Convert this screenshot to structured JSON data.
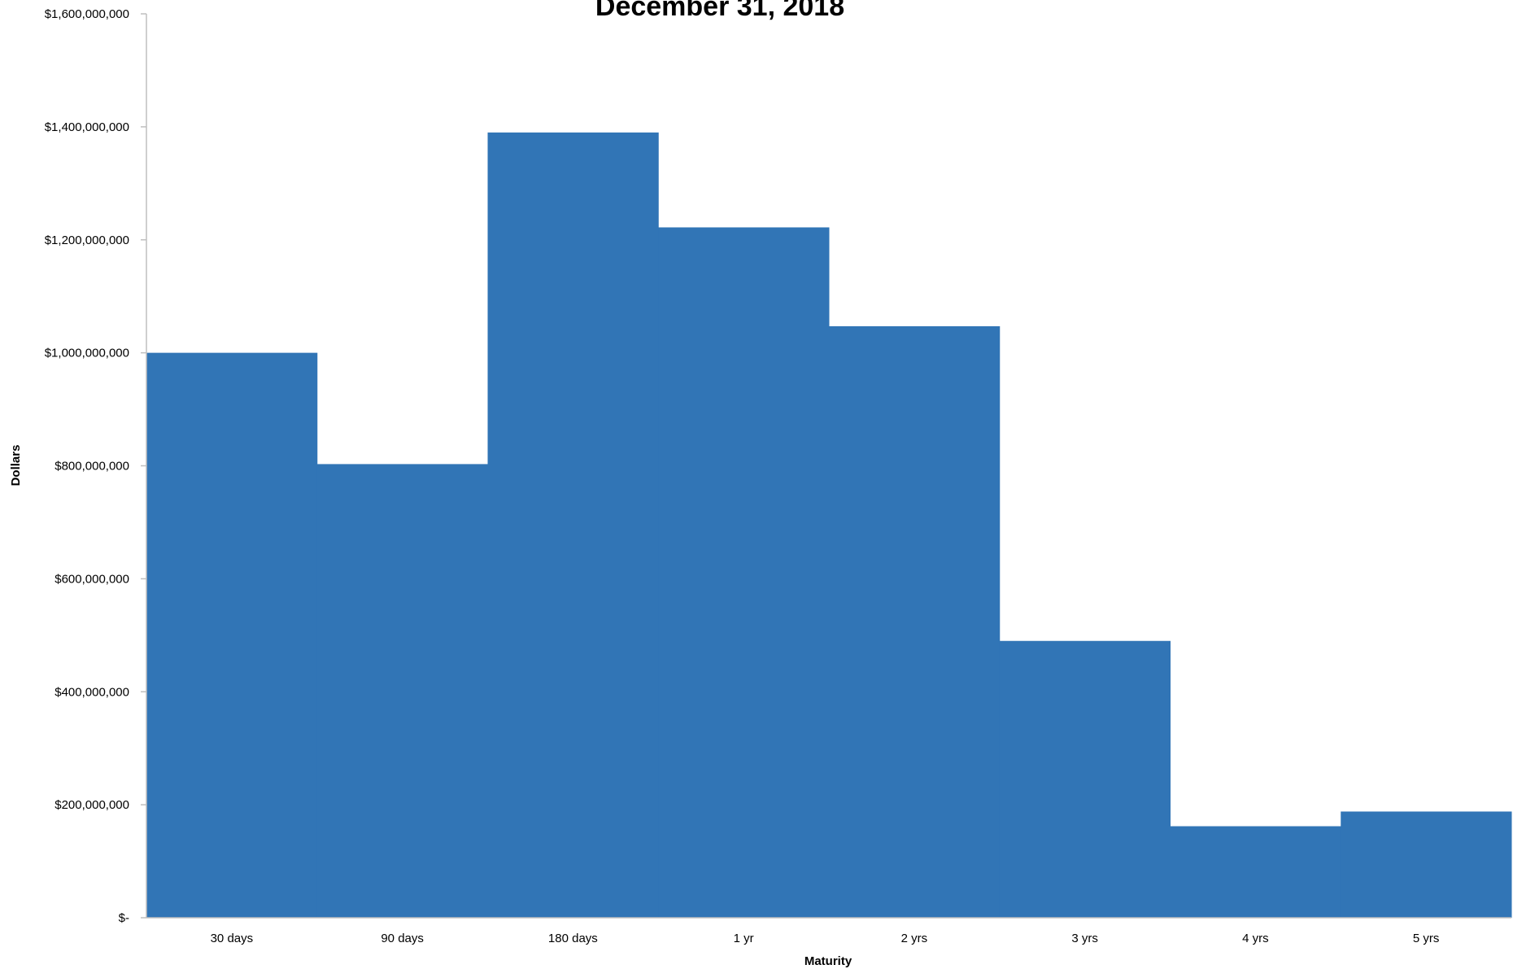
{
  "chart_data": {
    "type": "bar",
    "title": "December 31, 2018",
    "xlabel": "Maturity",
    "ylabel": "Dollars",
    "categories": [
      "30 days",
      "90 days",
      "180 days",
      "1 yr",
      "2 yrs",
      "3 yrs",
      "4 yrs",
      "5 yrs"
    ],
    "values": [
      1000000000,
      803000000,
      1390000000,
      1222000000,
      1047000000,
      490000000,
      162000000,
      188000000
    ],
    "ylim": [
      0,
      1600000000
    ],
    "yticks": [
      0,
      200000000,
      400000000,
      600000000,
      800000000,
      1000000000,
      1200000000,
      1400000000,
      1600000000
    ],
    "ytick_labels": [
      "$-",
      "$200,000,000",
      "$400,000,000",
      "$600,000,000",
      "$800,000,000",
      "$1,000,000,000",
      "$1,200,000,000",
      "$1,400,000,000",
      "$1,600,000,000"
    ],
    "grid": false,
    "legend": "none",
    "bar_color": "#3175b6"
  }
}
